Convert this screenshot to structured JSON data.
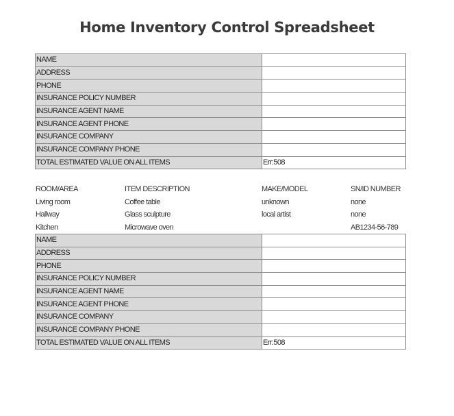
{
  "title": "Home Inventory Control Spreadsheet",
  "info_tables": [
    {
      "rows": [
        {
          "label": "NAME",
          "value": ""
        },
        {
          "label": "ADDRESS",
          "value": ""
        },
        {
          "label": "PHONE",
          "value": ""
        },
        {
          "label": "INSURANCE POLICY NUMBER",
          "value": ""
        },
        {
          "label": "INSURANCE AGENT NAME",
          "value": ""
        },
        {
          "label": "INSURANCE AGENT PHONE",
          "value": ""
        },
        {
          "label": "INSURANCE COMPANY",
          "value": ""
        },
        {
          "label": "INSURANCE COMPANY PHONE",
          "value": ""
        },
        {
          "label": "TOTAL ESTIMATED VALUE ON ALL ITEMS",
          "value": "Err:508"
        }
      ]
    },
    {
      "rows": [
        {
          "label": "NAME",
          "value": ""
        },
        {
          "label": "ADDRESS",
          "value": ""
        },
        {
          "label": "PHONE",
          "value": ""
        },
        {
          "label": "INSURANCE POLICY NUMBER",
          "value": ""
        },
        {
          "label": "INSURANCE AGENT NAME",
          "value": ""
        },
        {
          "label": "INSURANCE AGENT PHONE",
          "value": ""
        },
        {
          "label": "INSURANCE COMPANY",
          "value": ""
        },
        {
          "label": "INSURANCE COMPANY PHONE",
          "value": ""
        },
        {
          "label": "TOTAL ESTIMATED VALUE ON ALL ITEMS",
          "value": "Err:508"
        }
      ]
    }
  ],
  "items": {
    "headers": [
      "ROOM/AREA",
      "ITEM DESCRIPTION",
      "MAKE/MODEL",
      "SN/ID NUMBER"
    ],
    "rows": [
      [
        "Living room",
        "Coffee table",
        "unknown",
        "none"
      ],
      [
        "Hallway",
        "Glass sculpture",
        "local artist",
        "none"
      ],
      [
        "Kitchen",
        "Microwave oven",
        "",
        "AB1234-56-789"
      ]
    ]
  }
}
